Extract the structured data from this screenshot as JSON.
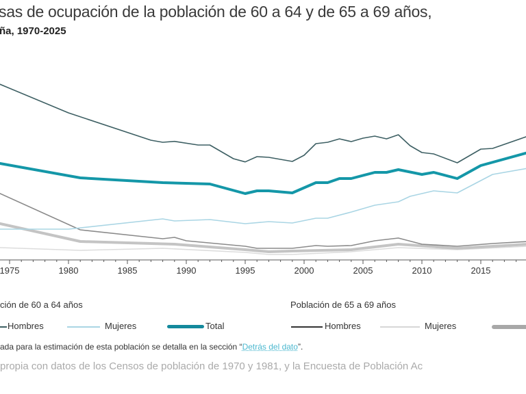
{
  "header": {
    "title": "sas de ocupación de la población de 60 a 64 y de 65 a 69 años,",
    "subtitle": "ña, 1970-2025"
  },
  "legend": {
    "group1_heading": "ción de 60 a 64 años",
    "group2_heading": "Población de 65 a 69 años",
    "items": [
      {
        "label": "Hombres",
        "color": "#3d5f63"
      },
      {
        "label": "Mujeres",
        "color": "#a9d5e4"
      },
      {
        "label": "Total",
        "color": "#14899c"
      },
      {
        "label": "Hombres",
        "color": "#333333"
      },
      {
        "label": "Mujeres",
        "color": "#d6d6d6"
      },
      {
        "label": "",
        "color": "#a8a8a8"
      }
    ]
  },
  "note": {
    "before": "ada para la estimación de esta población se detalla en la sección “",
    "link": "Detrás del dato",
    "after": "”."
  },
  "source": "propia con datos de los Censos de población de 1970 y 1981, y la Encuesta de Población Ac",
  "chart_data": {
    "type": "line",
    "title": "",
    "xlabel": "",
    "ylabel": "",
    "xlim": [
      1974.2,
      2019.5
    ],
    "ylim": [
      0,
      114
    ],
    "grid": false,
    "legend_position": "bottom",
    "x_ticks": [
      "1975",
      "1980",
      "1985",
      "1990",
      "1995",
      "2000",
      "2005",
      "2010",
      "2015"
    ],
    "series": [
      {
        "name": "Hombres",
        "group": "Población de 60 a 64 años",
        "color": "#3d5f63",
        "width": 1.6,
        "points": [
          [
            1974.2,
            77
          ],
          [
            1980,
            64.5
          ],
          [
            1987,
            52.5
          ],
          [
            1988,
            51.6
          ],
          [
            1989,
            52
          ],
          [
            1991,
            50.4
          ],
          [
            1992,
            50.4
          ],
          [
            1994,
            44.4
          ],
          [
            1995,
            43
          ],
          [
            1996,
            45.3
          ],
          [
            1997,
            45
          ],
          [
            1999,
            43.2
          ],
          [
            2000,
            45.9
          ],
          [
            2001,
            51
          ],
          [
            2002,
            51.6
          ],
          [
            2003,
            53.1
          ],
          [
            2004,
            51.9
          ],
          [
            2005,
            53.4
          ],
          [
            2006,
            54.3
          ],
          [
            2007,
            53.1
          ],
          [
            2008,
            54.9
          ],
          [
            2009,
            50.1
          ],
          [
            2010,
            47.1
          ],
          [
            2011,
            46.5
          ],
          [
            2013,
            42.6
          ],
          [
            2015,
            48.6
          ],
          [
            2016,
            48.9
          ],
          [
            2019,
            54.3
          ]
        ]
      },
      {
        "name": "Mujeres",
        "group": "Población de 60 a 64 años",
        "color": "#a9d5e4",
        "width": 1.6,
        "points": [
          [
            1974.2,
            13.5
          ],
          [
            1980,
            13.5
          ],
          [
            1988,
            18
          ],
          [
            1989,
            17.1
          ],
          [
            1992,
            17.7
          ],
          [
            1995,
            15.9
          ],
          [
            1997,
            16.8
          ],
          [
            1999,
            16.2
          ],
          [
            2001,
            18.3
          ],
          [
            2002,
            18.3
          ],
          [
            2004,
            21
          ],
          [
            2006,
            24
          ],
          [
            2008,
            25.5
          ],
          [
            2009,
            27.9
          ],
          [
            2011,
            30.3
          ],
          [
            2013,
            29.4
          ],
          [
            2016,
            37.5
          ],
          [
            2019,
            40.2
          ]
        ]
      },
      {
        "name": "Total",
        "group": "Población de 60 a 64 años",
        "color": "#1497a8",
        "width": 4,
        "points": [
          [
            1974.2,
            42.3
          ],
          [
            1981,
            36
          ],
          [
            1988,
            33.9
          ],
          [
            1992,
            33.3
          ],
          [
            1995,
            29.1
          ],
          [
            1996,
            30.3
          ],
          [
            1997,
            30.3
          ],
          [
            1999,
            29.4
          ],
          [
            2001,
            33.9
          ],
          [
            2002,
            33.9
          ],
          [
            2003,
            35.7
          ],
          [
            2004,
            35.7
          ],
          [
            2006,
            38.4
          ],
          [
            2007,
            38.4
          ],
          [
            2008,
            39.6
          ],
          [
            2010,
            37.5
          ],
          [
            2011,
            38.4
          ],
          [
            2013,
            35.7
          ],
          [
            2015,
            41.4
          ],
          [
            2019,
            47.1
          ]
        ]
      },
      {
        "name": "Hombres",
        "group": "Población de 65 a 69 años",
        "color": "#8a8a8a",
        "width": 1.6,
        "points": [
          [
            1974.2,
            29.1
          ],
          [
            1981,
            13.2
          ],
          [
            1988,
            9.3
          ],
          [
            1989,
            9.9
          ],
          [
            1990,
            8.4
          ],
          [
            1995,
            6
          ],
          [
            1996,
            5.1
          ],
          [
            1999,
            5.1
          ],
          [
            2001,
            6.3
          ],
          [
            2002,
            6
          ],
          [
            2004,
            6.3
          ],
          [
            2006,
            8.4
          ],
          [
            2008,
            9.6
          ],
          [
            2010,
            6.9
          ],
          [
            2013,
            6
          ],
          [
            2016,
            7.2
          ],
          [
            2019,
            8.1
          ]
        ]
      },
      {
        "name": "Mujeres",
        "group": "Población de 65 a 69 años",
        "color": "#dcdcdc",
        "width": 1.6,
        "points": [
          [
            1974.2,
            5.4
          ],
          [
            1981,
            4.2
          ],
          [
            1988,
            5.1
          ],
          [
            1995,
            3.3
          ],
          [
            1997,
            2.4
          ],
          [
            1999,
            2.4
          ],
          [
            2004,
            3.6
          ],
          [
            2008,
            5.4
          ],
          [
            2013,
            4.5
          ],
          [
            2019,
            6
          ]
        ]
      },
      {
        "name": "",
        "group": "Población de 65 a 69 años",
        "color": "#c4c4c4",
        "width": 4,
        "points": [
          [
            1974.2,
            15.9
          ],
          [
            1981,
            8.1
          ],
          [
            1989,
            6.9
          ],
          [
            1995,
            4.5
          ],
          [
            1997,
            3.6
          ],
          [
            1999,
            3.9
          ],
          [
            2004,
            4.5
          ],
          [
            2008,
            6.9
          ],
          [
            2013,
            5.1
          ],
          [
            2019,
            6.9
          ]
        ]
      }
    ]
  }
}
